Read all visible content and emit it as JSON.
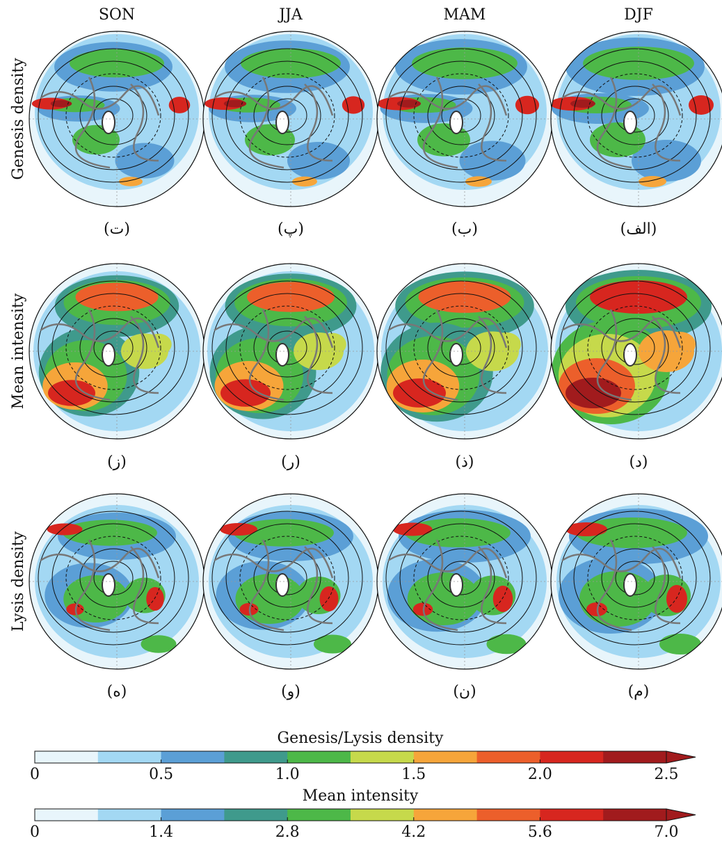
{
  "columns": [
    "SON",
    "JJA",
    "MAM",
    "DJF"
  ],
  "rows": [
    "Genesis density",
    "Mean intensity",
    "Lysis density"
  ],
  "panel_labels": [
    [
      "(ت)",
      "(پ)",
      "(ب)",
      "(الف)"
    ],
    [
      "(ز)",
      "(ر)",
      "(ذ)",
      "(د)"
    ],
    [
      "(ه)",
      "(و)",
      "(ن)",
      "(م)"
    ]
  ],
  "colorbars": [
    {
      "title": "Genesis/Lysis density",
      "lim": [
        0,
        2.5
      ],
      "ticks": [
        0,
        0.5,
        {
          "value": 1,
          "label": "1.0"
        },
        1.5,
        {
          "value": 2,
          "label": "2.0"
        },
        2.5
      ],
      "colors": [
        "#e8f5fb",
        "#a3d8f3",
        "#5b9fd6",
        "#3f9a8c",
        "#4db848",
        "#c6d94b",
        "#f6a53a",
        "#ec5f2b",
        "#d7261f",
        "#a11b1d"
      ]
    },
    {
      "title": "Mean intensity",
      "lim": [
        0,
        7
      ],
      "ticks": [
        0,
        1.4,
        2.8,
        4.2,
        5.6,
        {
          "value": 7,
          "label": "7.0"
        }
      ],
      "colors": [
        "#e8f5fb",
        "#a3d8f3",
        "#5b9fd6",
        "#3f9a8c",
        "#4db848",
        "#c6d94b",
        "#f6a53a",
        "#ec5f2b",
        "#d7261f",
        "#a11b1d"
      ]
    }
  ]
}
